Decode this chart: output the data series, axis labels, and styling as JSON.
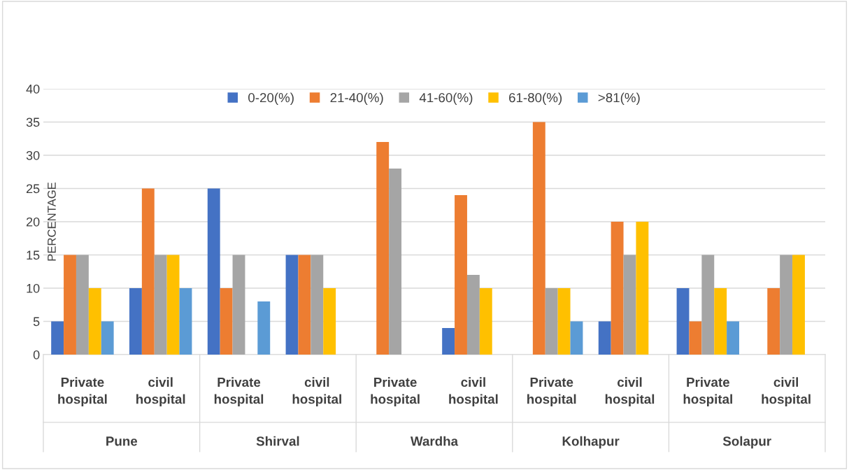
{
  "chart_data": {
    "type": "bar",
    "ylabel": "PERCENTAGE",
    "categories": [
      "Private hospital",
      "civil hospital",
      "Private hospital",
      "civil hospital",
      "Private hospital",
      "civil hospital",
      "Private hospital",
      "civil hospital",
      "Private hospital",
      "civil hospital"
    ],
    "series": [
      {
        "name": "0-20(%)",
        "color": "#4472c4",
        "values": [
          5,
          10,
          25,
          15,
          0,
          4,
          0,
          5,
          10,
          0
        ]
      },
      {
        "name": "21-40(%)",
        "color": "#ed7d31",
        "values": [
          15,
          25,
          10,
          15,
          32,
          24,
          35,
          20,
          5,
          10
        ]
      },
      {
        "name": "41-60(%)",
        "color": "#a5a5a5",
        "values": [
          15,
          15,
          15,
          15,
          28,
          12,
          10,
          15,
          15,
          15
        ]
      },
      {
        "name": "61-80(%)",
        "color": "#ffc000",
        "values": [
          10,
          15,
          0,
          10,
          0,
          10,
          10,
          20,
          10,
          15
        ]
      },
      {
        "name": ">81(%)",
        "color": "#5b9bd5",
        "values": [
          5,
          10,
          8,
          0,
          0,
          0,
          5,
          0,
          5,
          0
        ]
      }
    ],
    "annotations": [
      "Pune",
      "Shirval",
      "Wardha",
      "Kolhapur",
      "Solapur"
    ],
    "ylim": [
      0,
      40
    ],
    "yticks": [
      0,
      5,
      10,
      15,
      20,
      25,
      30,
      35,
      40
    ],
    "grid": "y",
    "legend": "top"
  }
}
